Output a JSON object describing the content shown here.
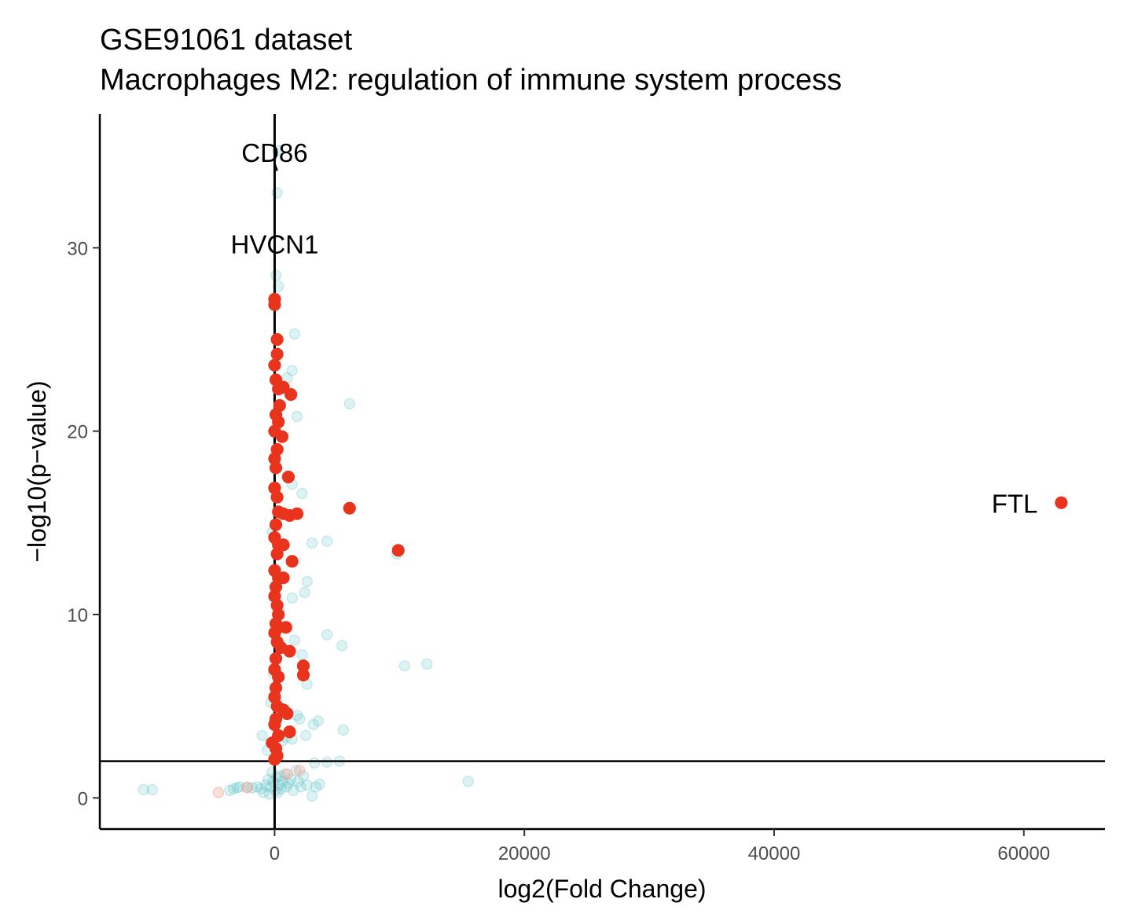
{
  "chart_data": {
    "type": "scatter",
    "title": "GSE91061 dataset",
    "subtitle": "Macrophages M2: regulation of immune system process",
    "xlabel": "log2(Fold Change)",
    "ylabel": "−log10(p−value)",
    "xlim": [
      -14000,
      66500
    ],
    "ylim": [
      -1.7,
      37.3
    ],
    "x_ticks": [
      0,
      20000,
      40000,
      60000
    ],
    "x_tick_labels": [
      "0",
      "20000",
      "40000",
      "60000"
    ],
    "y_ticks": [
      0,
      10,
      20,
      30
    ],
    "y_tick_labels": [
      "0",
      "10",
      "20",
      "30"
    ],
    "grid": false,
    "legend": "none",
    "reference_lines": {
      "vertical_x": 0,
      "horizontal_y": 2
    },
    "colors": {
      "significant": "#e8341c",
      "background": "#62c3c9",
      "nonsig_high": "#f4a090",
      "axis": "#000000"
    },
    "series": [
      {
        "values": [
          {
            "x": -10500,
            "y": 0.45
          },
          {
            "x": -9800,
            "y": 0.45
          },
          {
            "x": -3600,
            "y": 0.4
          },
          {
            "x": -3300,
            "y": 0.5
          },
          {
            "x": -3000,
            "y": 0.55
          },
          {
            "x": -2800,
            "y": 0.6
          },
          {
            "x": -2200,
            "y": 0.6
          },
          {
            "x": -1800,
            "y": 0.55
          },
          {
            "x": -1400,
            "y": 0.6
          },
          {
            "x": -1100,
            "y": 0.5
          },
          {
            "x": -900,
            "y": 0.3
          },
          {
            "x": -700,
            "y": 0.7
          },
          {
            "x": -500,
            "y": 1.0
          },
          {
            "x": -400,
            "y": 0.2
          },
          {
            "x": -300,
            "y": 0.6
          },
          {
            "x": -200,
            "y": 1.4
          },
          {
            "x": -100,
            "y": 0.9
          },
          {
            "x": 50,
            "y": 0.4
          },
          {
            "x": 150,
            "y": 1.1
          },
          {
            "x": 250,
            "y": 0.3
          },
          {
            "x": 350,
            "y": 0.7
          },
          {
            "x": 450,
            "y": 1.2
          },
          {
            "x": 550,
            "y": 0.5
          },
          {
            "x": 650,
            "y": 0.9
          },
          {
            "x": 800,
            "y": 1.3
          },
          {
            "x": 950,
            "y": 0.6
          },
          {
            "x": 1100,
            "y": 0.8
          },
          {
            "x": 1300,
            "y": 1.0
          },
          {
            "x": 1500,
            "y": 0.4
          },
          {
            "x": 1700,
            "y": 1.5
          },
          {
            "x": 1900,
            "y": 0.9
          },
          {
            "x": 2100,
            "y": 0.6
          },
          {
            "x": 2300,
            "y": 1.2
          },
          {
            "x": 2600,
            "y": 0.7
          },
          {
            "x": 3000,
            "y": 0.1
          },
          {
            "x": 3300,
            "y": 0.6
          },
          {
            "x": 3600,
            "y": 0.75
          },
          {
            "x": 15500,
            "y": 0.9
          },
          {
            "x": -1000,
            "y": 3.4
          },
          {
            "x": -600,
            "y": 2.6
          },
          {
            "x": 600,
            "y": 3.1
          },
          {
            "x": 900,
            "y": 3.3
          },
          {
            "x": 1400,
            "y": 3.2
          },
          {
            "x": 2500,
            "y": 3.4
          },
          {
            "x": 3200,
            "y": 1.9
          },
          {
            "x": 4200,
            "y": 1.95
          },
          {
            "x": 5200,
            "y": 2.0
          },
          {
            "x": 3100,
            "y": 4.0
          },
          {
            "x": 3500,
            "y": 4.2
          },
          {
            "x": 5500,
            "y": 3.7
          },
          {
            "x": 1800,
            "y": 4.5
          },
          {
            "x": 2000,
            "y": 4.3
          },
          {
            "x": 2600,
            "y": 6.2
          },
          {
            "x": 2200,
            "y": 7.8
          },
          {
            "x": 1600,
            "y": 8.6
          },
          {
            "x": 4200,
            "y": 8.9
          },
          {
            "x": 5400,
            "y": 8.3
          },
          {
            "x": 10400,
            "y": 7.2
          },
          {
            "x": 12200,
            "y": 7.3
          },
          {
            "x": 1400,
            "y": 10.9
          },
          {
            "x": 2400,
            "y": 11.2
          },
          {
            "x": 2600,
            "y": 11.8
          },
          {
            "x": 3000,
            "y": 13.9
          },
          {
            "x": 4200,
            "y": 14.0
          },
          {
            "x": 9800,
            "y": 13.3
          },
          {
            "x": 2200,
            "y": 16.6
          },
          {
            "x": 1400,
            "y": 17.1
          },
          {
            "x": 1800,
            "y": 20.8
          },
          {
            "x": 6000,
            "y": 21.5
          },
          {
            "x": 1400,
            "y": 23.3
          },
          {
            "x": 1000,
            "y": 22.9
          },
          {
            "x": 1600,
            "y": 25.3
          },
          {
            "x": 300,
            "y": 27.9
          },
          {
            "x": 100,
            "y": 28.5
          },
          {
            "x": 200,
            "y": 33.0
          },
          {
            "x": 250,
            "y": 35.3
          },
          {
            "x": -300,
            "y": 5.2
          },
          {
            "x": -100,
            "y": 6.8
          },
          {
            "x": 200,
            "y": 9.5
          },
          {
            "x": 100,
            "y": 12.5
          },
          {
            "x": -200,
            "y": 14.5
          },
          {
            "x": 300,
            "y": 19.0
          }
        ]
      },
      {
        "values": [
          {
            "x": -4500,
            "y": 0.3
          },
          {
            "x": -2200,
            "y": 0.55
          },
          {
            "x": 1000,
            "y": 1.3
          },
          {
            "x": 2000,
            "y": 1.5
          }
        ]
      },
      {
        "values": [
          {
            "x": 0,
            "y": 27.2
          },
          {
            "x": 0,
            "y": 26.9
          },
          {
            "x": 200,
            "y": 25.0
          },
          {
            "x": 200,
            "y": 24.2
          },
          {
            "x": 0,
            "y": 23.6
          },
          {
            "x": 100,
            "y": 22.8
          },
          {
            "x": 300,
            "y": 22.3
          },
          {
            "x": 700,
            "y": 22.4
          },
          {
            "x": 1300,
            "y": 22.0
          },
          {
            "x": 400,
            "y": 21.4
          },
          {
            "x": 100,
            "y": 20.9
          },
          {
            "x": 300,
            "y": 20.5
          },
          {
            "x": 0,
            "y": 20.0
          },
          {
            "x": 600,
            "y": 19.7
          },
          {
            "x": 200,
            "y": 19.0
          },
          {
            "x": 0,
            "y": 18.5
          },
          {
            "x": 100,
            "y": 18.0
          },
          {
            "x": 1100,
            "y": 17.5
          },
          {
            "x": 0,
            "y": 16.9
          },
          {
            "x": 200,
            "y": 16.4
          },
          {
            "x": 300,
            "y": 15.6
          },
          {
            "x": 700,
            "y": 15.5
          },
          {
            "x": 1200,
            "y": 15.4
          },
          {
            "x": 1800,
            "y": 15.5
          },
          {
            "x": 100,
            "y": 14.9
          },
          {
            "x": 0,
            "y": 14.2
          },
          {
            "x": 300,
            "y": 13.8
          },
          {
            "x": 700,
            "y": 13.8
          },
          {
            "x": 200,
            "y": 13.3
          },
          {
            "x": 1400,
            "y": 12.9
          },
          {
            "x": 0,
            "y": 12.4
          },
          {
            "x": 300,
            "y": 12.0
          },
          {
            "x": 700,
            "y": 12.0
          },
          {
            "x": 100,
            "y": 11.5
          },
          {
            "x": 0,
            "y": 11.0
          },
          {
            "x": 200,
            "y": 10.5
          },
          {
            "x": 300,
            "y": 10.0
          },
          {
            "x": 100,
            "y": 9.5
          },
          {
            "x": 300,
            "y": 9.3
          },
          {
            "x": 900,
            "y": 9.3
          },
          {
            "x": 0,
            "y": 9.0
          },
          {
            "x": 200,
            "y": 8.5
          },
          {
            "x": 500,
            "y": 8.2
          },
          {
            "x": 1200,
            "y": 8.0
          },
          {
            "x": 100,
            "y": 7.6
          },
          {
            "x": 0,
            "y": 7.0
          },
          {
            "x": 2300,
            "y": 7.2
          },
          {
            "x": 2300,
            "y": 6.7
          },
          {
            "x": 300,
            "y": 6.6
          },
          {
            "x": 100,
            "y": 6.0
          },
          {
            "x": 0,
            "y": 5.5
          },
          {
            "x": 200,
            "y": 5.0
          },
          {
            "x": 700,
            "y": 4.8
          },
          {
            "x": 1000,
            "y": 4.6
          },
          {
            "x": 100,
            "y": 4.3
          },
          {
            "x": 0,
            "y": 4.0
          },
          {
            "x": 1200,
            "y": 3.6
          },
          {
            "x": 300,
            "y": 3.4
          },
          {
            "x": -200,
            "y": 3.0
          },
          {
            "x": 100,
            "y": 2.7
          },
          {
            "x": 200,
            "y": 2.3
          },
          {
            "x": 0,
            "y": 2.1
          },
          {
            "x": 6000,
            "y": 15.8
          },
          {
            "x": 9900,
            "y": 13.5
          },
          {
            "x": 63000,
            "y": 16.1
          }
        ]
      }
    ],
    "labels": [
      {
        "text": "CD86",
        "x": 200,
        "y": 34.2,
        "label_x": 0,
        "label_y": 35.2
      },
      {
        "text": "HVCN1",
        "x": 0,
        "y": 28.5,
        "label_x": 0,
        "label_y": 30.2
      },
      {
        "text": "FTL",
        "x": 63000,
        "y": 16.1,
        "label_x": 56500,
        "label_y": 16.0
      }
    ]
  }
}
